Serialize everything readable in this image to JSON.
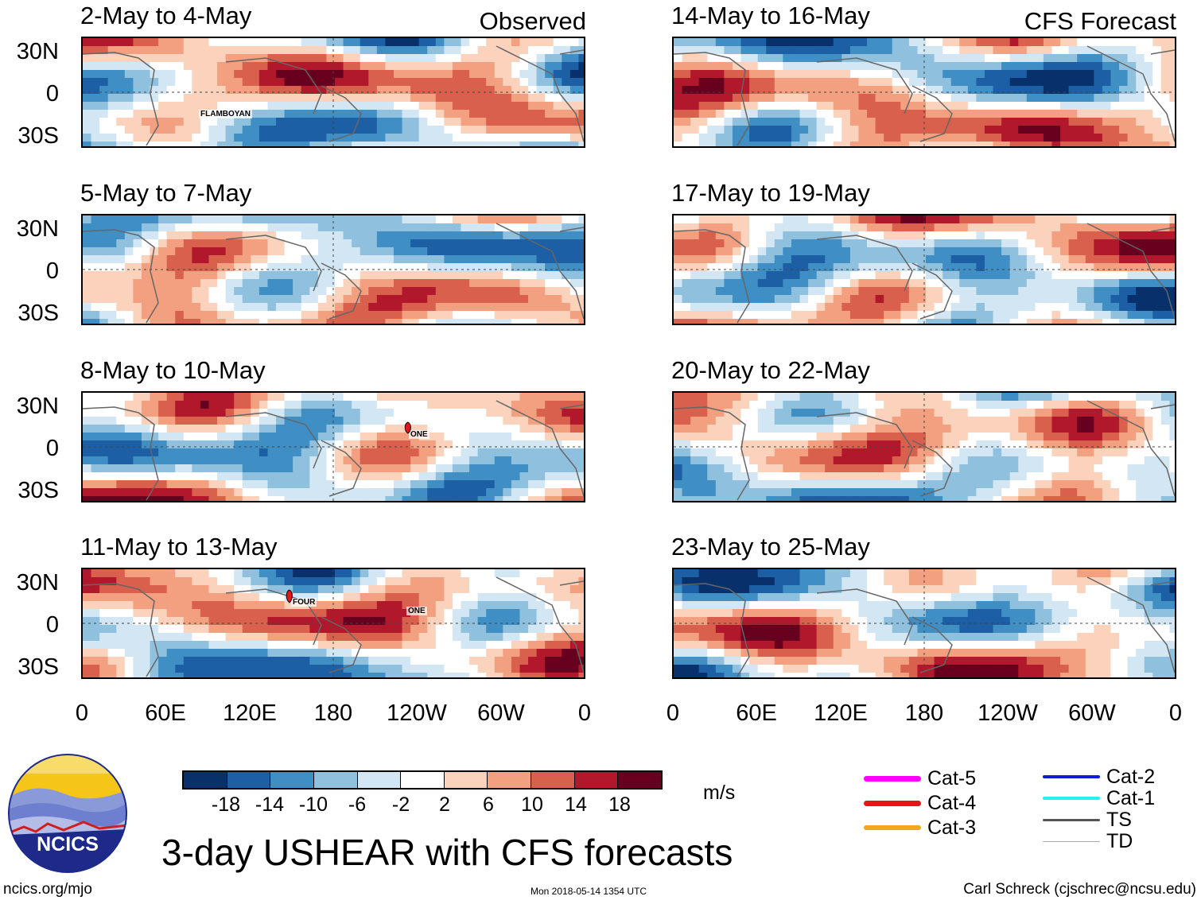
{
  "chart_data": {
    "type": "heatmap",
    "variable": "USHEAR",
    "title": "3-day USHEAR with CFS forecasts",
    "units": "m/s",
    "columns": [
      {
        "label": "Observed",
        "panels": [
          {
            "title": "2-May to 4-May",
            "storms": [
              {
                "name": "FLAMBOYAN"
              }
            ]
          },
          {
            "title": "5-May to 7-May",
            "storms": []
          },
          {
            "title": "8-May to 10-May",
            "storms": [
              {
                "name": "ONE"
              }
            ]
          },
          {
            "title": "11-May to 13-May",
            "storms": [
              {
                "name": "FOUR"
              },
              {
                "name": "ONE"
              }
            ]
          }
        ]
      },
      {
        "label": "CFS Forecast",
        "panels": [
          {
            "title": "14-May to 16-May",
            "storms": []
          },
          {
            "title": "17-May to 19-May",
            "storms": []
          },
          {
            "title": "20-May to 22-May",
            "storms": []
          },
          {
            "title": "23-May to 25-May",
            "storms": []
          }
        ]
      }
    ],
    "y_ticks": [
      "30N",
      "0",
      "30S"
    ],
    "x_ticks": [
      "0",
      "60E",
      "120E",
      "180",
      "120W",
      "60W",
      "0"
    ],
    "colorbar": {
      "labels": [
        "-18",
        "-14",
        "-10",
        "-6",
        "-2",
        "2",
        "6",
        "10",
        "14",
        "18"
      ],
      "colors": [
        "#08306b",
        "#1d5fa5",
        "#3f8ec4",
        "#8fc1de",
        "#d2e6f3",
        "#ffffff",
        "#fbd2bc",
        "#f2a07f",
        "#d9604d",
        "#b2182b",
        "#67001f"
      ]
    },
    "legend": [
      {
        "label": "Cat-5",
        "color": "#ff00ff"
      },
      {
        "label": "Cat-4",
        "color": "#e8141a"
      },
      {
        "label": "Cat-3",
        "color": "#f2a81c"
      },
      {
        "label": "Cat-2",
        "color": "#0a1fd6"
      },
      {
        "label": "Cat-1",
        "color": "#22f2f2"
      },
      {
        "label": "TS",
        "color": "#555555"
      },
      {
        "label": "TD",
        "color": "#aaaaaa"
      }
    ]
  },
  "footer": {
    "logo_text": "NCICS",
    "url": "ncics.org/mjo",
    "timestamp": "Mon 2018-05-14 1354 UTC",
    "author": "Carl Schreck (cjschrec@ncsu.edu)"
  }
}
